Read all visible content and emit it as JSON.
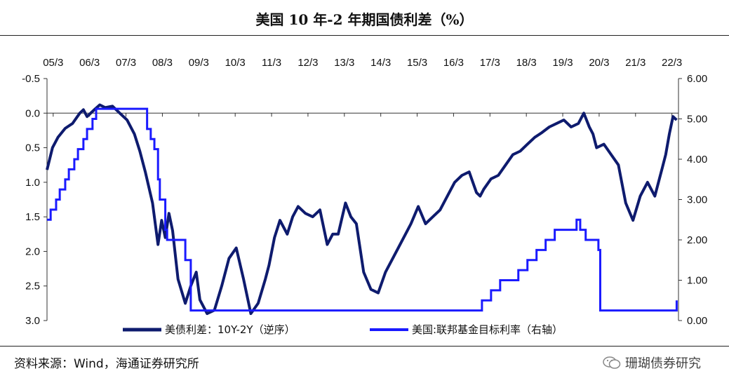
{
  "header": {
    "title": "美国 10 年-2 年期国债利差（%）"
  },
  "footer": {
    "source": "资料来源：Wind，海通证券研究所",
    "watermark": "珊瑚债券研究"
  },
  "chart_data": {
    "type": "line",
    "x_tick_labels": [
      "05/3",
      "06/3",
      "07/3",
      "08/3",
      "09/3",
      "10/3",
      "11/3",
      "12/3",
      "13/3",
      "14/3",
      "15/3",
      "16/3",
      "17/3",
      "18/3",
      "19/3",
      "20/3",
      "21/3",
      "22/3"
    ],
    "x_range": [
      2005.0,
      2022.35
    ],
    "y_left": {
      "ticks": [
        "-0.5",
        "0.0",
        "0.5",
        "1.0",
        "1.5",
        "2.0",
        "2.5",
        "3.0"
      ],
      "range": [
        -0.5,
        3.0
      ],
      "inverted": true
    },
    "y_right": {
      "ticks": [
        "6.00",
        "5.00",
        "4.00",
        "3.00",
        "2.00",
        "1.00",
        "0.00"
      ],
      "range": [
        0,
        6
      ]
    },
    "series": [
      {
        "name": "美债利差：10Y-2Y（逆序）",
        "axis": "left",
        "color": "#0e1b6e",
        "x": [
          2005.0,
          2005.15,
          2005.3,
          2005.5,
          2005.7,
          2005.9,
          2006.0,
          2006.1,
          2006.3,
          2006.45,
          2006.6,
          2006.8,
          2007.0,
          2007.2,
          2007.4,
          2007.55,
          2007.7,
          2007.9,
          2008.05,
          2008.15,
          2008.25,
          2008.35,
          2008.45,
          2008.6,
          2008.8,
          2008.95,
          2009.1,
          2009.2,
          2009.4,
          2009.6,
          2009.8,
          2010.0,
          2010.2,
          2010.4,
          2010.6,
          2010.8,
          2011.0,
          2011.1,
          2011.25,
          2011.4,
          2011.6,
          2011.75,
          2011.9,
          2012.1,
          2012.3,
          2012.5,
          2012.7,
          2012.85,
          2013.0,
          2013.2,
          2013.35,
          2013.5,
          2013.7,
          2013.9,
          2014.1,
          2014.3,
          2014.5,
          2014.7,
          2014.9,
          2015.0,
          2015.2,
          2015.4,
          2015.6,
          2015.8,
          2016.0,
          2016.2,
          2016.4,
          2016.6,
          2016.8,
          2016.9,
          2017.0,
          2017.2,
          2017.4,
          2017.6,
          2017.8,
          2018.0,
          2018.2,
          2018.4,
          2018.6,
          2018.8,
          2019.0,
          2019.2,
          2019.4,
          2019.6,
          2019.75,
          2019.9,
          2020.0,
          2020.1,
          2020.3,
          2020.5,
          2020.7,
          2020.9,
          2021.1,
          2021.3,
          2021.5,
          2021.7,
          2021.9,
          2022.0,
          2022.1,
          2022.2,
          2022.3
        ],
        "values": [
          0.82,
          0.5,
          0.35,
          0.22,
          0.15,
          0.0,
          -0.05,
          0.05,
          -0.05,
          -0.12,
          -0.08,
          -0.1,
          0.0,
          0.1,
          0.3,
          0.55,
          0.85,
          1.3,
          1.9,
          1.55,
          1.8,
          1.45,
          1.7,
          2.4,
          2.75,
          2.5,
          2.3,
          2.7,
          2.9,
          2.85,
          2.5,
          2.1,
          1.95,
          2.4,
          2.9,
          2.75,
          2.4,
          2.2,
          1.8,
          1.55,
          1.75,
          1.5,
          1.35,
          1.45,
          1.5,
          1.4,
          1.9,
          1.75,
          1.75,
          1.3,
          1.5,
          1.6,
          2.3,
          2.55,
          2.6,
          2.3,
          2.1,
          1.9,
          1.7,
          1.6,
          1.35,
          1.6,
          1.5,
          1.4,
          1.2,
          1.0,
          0.9,
          0.85,
          1.15,
          1.2,
          1.1,
          0.95,
          0.9,
          0.75,
          0.6,
          0.55,
          0.45,
          0.35,
          0.28,
          0.2,
          0.15,
          0.1,
          0.2,
          0.15,
          0.0,
          0.2,
          0.3,
          0.5,
          0.45,
          0.6,
          0.75,
          1.3,
          1.55,
          1.2,
          1.0,
          1.2,
          0.8,
          0.6,
          0.3,
          0.05,
          0.1
        ]
      },
      {
        "name": "美国:联邦基金目标利率（右轴）",
        "axis": "right",
        "color": "#1a1aff",
        "x": [
          2005.0,
          2005.1,
          2005.25,
          2005.35,
          2005.5,
          2005.6,
          2005.75,
          2005.85,
          2006.0,
          2006.1,
          2006.25,
          2006.35,
          2006.5,
          2007.65,
          2007.75,
          2007.85,
          2007.95,
          2008.05,
          2008.1,
          2008.25,
          2008.3,
          2008.75,
          2008.8,
          2008.95,
          2015.95,
          2016.95,
          2017.2,
          2017.45,
          2017.95,
          2018.2,
          2018.45,
          2018.7,
          2018.95,
          2019.55,
          2019.65,
          2019.8,
          2020.15,
          2020.2,
          2022.2,
          2022.3
        ],
        "values": [
          2.5,
          2.75,
          3.0,
          3.25,
          3.5,
          3.75,
          4.0,
          4.25,
          4.5,
          4.75,
          5.0,
          5.25,
          5.25,
          5.25,
          4.75,
          4.5,
          4.25,
          3.5,
          3.0,
          2.25,
          2.0,
          2.0,
          1.5,
          0.25,
          0.25,
          0.5,
          0.75,
          1.0,
          1.25,
          1.5,
          1.75,
          2.0,
          2.25,
          2.5,
          2.25,
          2.0,
          1.75,
          0.25,
          0.25,
          0.5
        ]
      }
    ],
    "legend_placement": "bottom-center",
    "grid": false
  }
}
